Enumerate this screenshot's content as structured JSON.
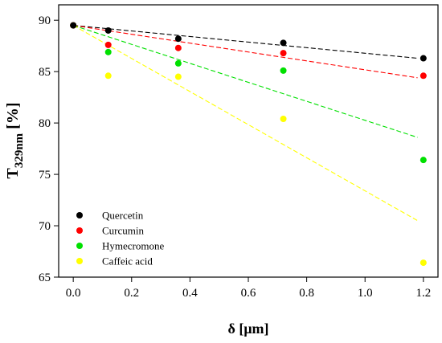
{
  "chart_data": {
    "type": "scatter",
    "xlabel": "δ [μm]",
    "ylabel_main": "T",
    "ylabel_sub": "329nm",
    "ylabel_unit": " [%]",
    "xlim": [
      -0.05,
      1.25
    ],
    "ylim": [
      65,
      91.5
    ],
    "x_ticks": [
      0.0,
      0.2,
      0.4,
      0.6,
      0.8,
      1.0,
      1.2
    ],
    "x_tick_labels": [
      "0.0",
      "0.2",
      "0.4",
      "0.6",
      "0.8",
      "1.0",
      "1.2"
    ],
    "y_ticks": [
      65,
      70,
      75,
      80,
      85,
      90
    ],
    "y_tick_labels": [
      "65",
      "70",
      "75",
      "80",
      "85",
      "90"
    ],
    "grid": false,
    "legend_position": "bottom-left",
    "x": [
      0.0,
      0.12,
      0.36,
      0.72,
      1.2
    ],
    "series": [
      {
        "name": "Quercetin",
        "color": "#000000",
        "values": [
          89.5,
          89.0,
          88.2,
          87.8,
          86.3
        ],
        "trend": [
          [
            0.0,
            89.5
          ],
          [
            1.18,
            86.3
          ]
        ]
      },
      {
        "name": "Curcumin",
        "color": "#ff0000",
        "values": [
          89.5,
          87.6,
          87.3,
          86.8,
          84.6
        ],
        "trend": [
          [
            0.0,
            89.5
          ],
          [
            1.18,
            84.4
          ]
        ]
      },
      {
        "name": "Hymecromone",
        "color": "#00e000",
        "values": [
          89.5,
          86.9,
          85.8,
          85.1,
          76.4
        ],
        "trend": [
          [
            0.0,
            89.5
          ],
          [
            1.18,
            78.6
          ]
        ]
      },
      {
        "name": "Caffeic acid",
        "color": "#ffff00",
        "values": [
          89.5,
          84.6,
          84.5,
          80.4,
          66.4
        ],
        "trend": [
          [
            0.0,
            89.5
          ],
          [
            1.18,
            70.5
          ]
        ]
      }
    ]
  }
}
